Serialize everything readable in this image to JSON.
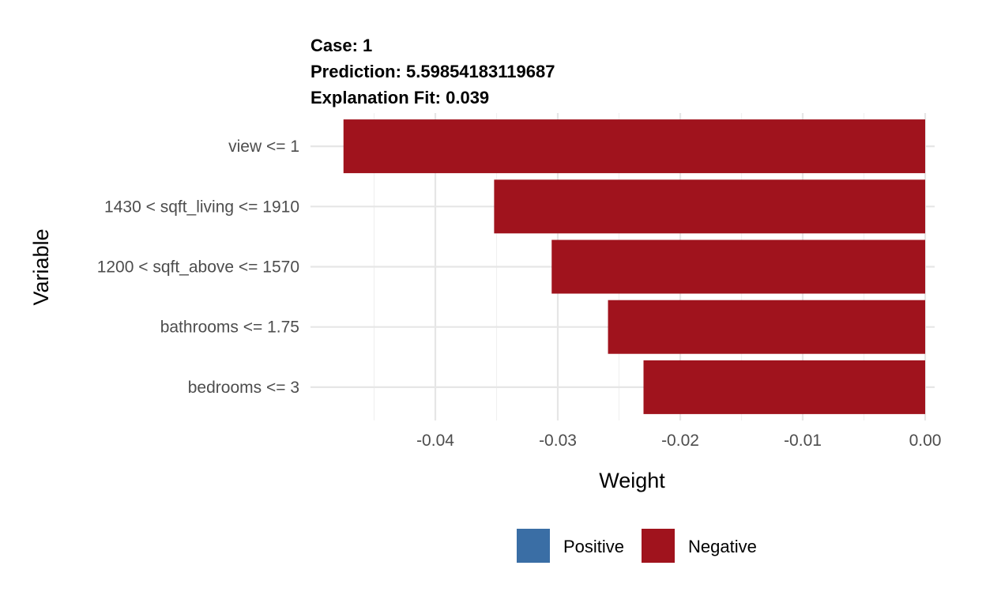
{
  "title_lines": [
    "Case: 1",
    "Prediction: 5.59854183119687",
    "Explanation Fit: 0.039"
  ],
  "chart_data": {
    "type": "bar",
    "orientation": "horizontal",
    "categories": [
      "view <= 1",
      "1430 < sqft_living <= 1910",
      "1200 < sqft_above <= 1570",
      "bathrooms <= 1.75",
      "bedrooms <= 3"
    ],
    "values": [
      -0.0475,
      -0.0352,
      -0.0305,
      -0.0259,
      -0.023
    ],
    "signs": [
      "Negative",
      "Negative",
      "Negative",
      "Negative",
      "Negative"
    ],
    "xlabel": "Weight",
    "ylabel": "Variable",
    "xlim": [
      -0.0482,
      0.0
    ],
    "xticks": [
      -0.04,
      -0.03,
      -0.02,
      -0.01,
      0.0
    ],
    "xtick_labels": [
      "-0.04",
      "-0.03",
      "-0.02",
      "-0.01",
      "0.00"
    ],
    "grid": true,
    "legend_placement": "bottom",
    "legend": [
      {
        "name": "Positive",
        "color": "#3a6ea5"
      },
      {
        "name": "Negative",
        "color": "#a0131d"
      }
    ]
  },
  "colors": {
    "positive": "#3a6ea5",
    "negative": "#a0131d"
  }
}
